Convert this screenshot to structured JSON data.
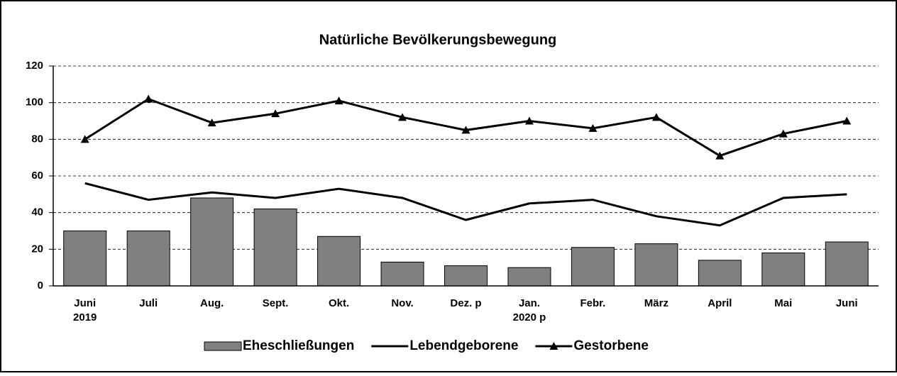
{
  "chart_data": {
    "type": "bar_line",
    "title": "Natürliche Bevölkerungsbewegung",
    "categories": [
      "Juni\n2019",
      "Juli",
      "Aug.",
      "Sept.",
      "Okt.",
      "Nov.",
      "Dez. p",
      "Jan.\n2020 p",
      "Febr.",
      "März",
      "April",
      "Mai",
      "Juni"
    ],
    "series": [
      {
        "name": "Eheschließungen",
        "type": "bar",
        "color": "#808080",
        "values": [
          30,
          30,
          48,
          42,
          27,
          13,
          11,
          10,
          21,
          23,
          14,
          18,
          24
        ]
      },
      {
        "name": "Lebendgeborene",
        "type": "line",
        "color": "#000000",
        "values": [
          56,
          47,
          51,
          48,
          53,
          48,
          36,
          45,
          47,
          38,
          33,
          48,
          50
        ]
      },
      {
        "name": "Gestorbene",
        "type": "line",
        "color": "#000000",
        "marker": "triangle",
        "values": [
          80,
          102,
          89,
          94,
          101,
          92,
          85,
          90,
          86,
          92,
          71,
          83,
          90
        ]
      }
    ],
    "ylim": [
      0,
      120
    ],
    "yticks": [
      0,
      20,
      40,
      60,
      80,
      100,
      120
    ],
    "grid": true,
    "legend": "bottom"
  }
}
